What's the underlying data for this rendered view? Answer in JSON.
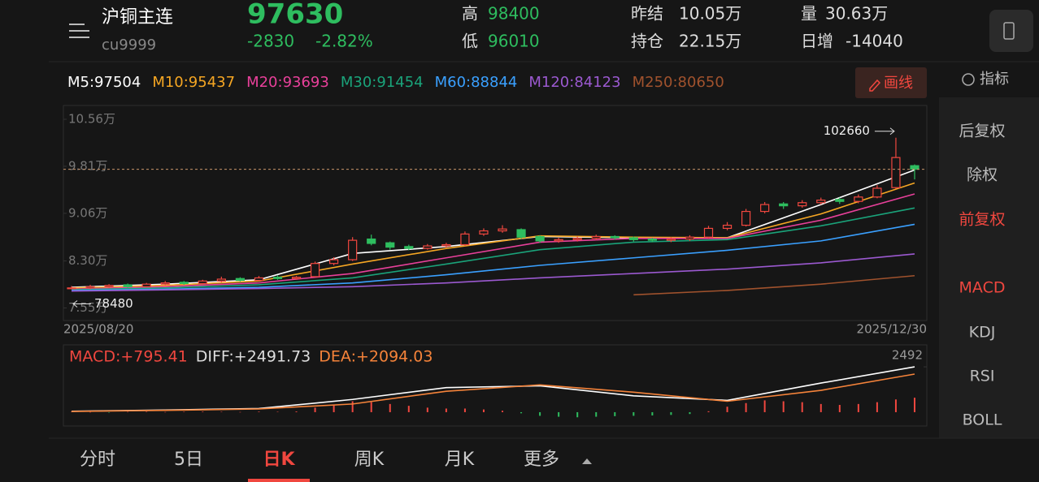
{
  "header": {
    "title": "沪铜主连",
    "code": "cu9999",
    "price": "97630",
    "change": "-2830",
    "change_pct": "-2.82%",
    "high_label": "高",
    "high": "98400",
    "low_label": "低",
    "low": "96010",
    "settle_label": "昨结",
    "settle": "10.05万",
    "oi_label": "持仓",
    "oi": "22.15万",
    "volume_label": "量",
    "volume": "30.63万",
    "oi_change_label": "日增",
    "oi_change": "-14040"
  },
  "draw_button": "画线",
  "sidebar": {
    "indicator": "指标",
    "items": [
      "后复权",
      "除权",
      "前复权",
      "MACD",
      "KDJ",
      "RSI",
      "BOLL"
    ],
    "active": [
      "前复权",
      "MACD"
    ]
  },
  "tabs": {
    "items": [
      "分时",
      "5日",
      "日K",
      "周K",
      "月K",
      "更多"
    ],
    "active": "日K"
  },
  "chart_data": [
    {
      "type": "candlestick",
      "categories": [
        "2025/08/20",
        null,
        null,
        null,
        null,
        null,
        null,
        null,
        null,
        null,
        null,
        null,
        null,
        null,
        null,
        null,
        null,
        null,
        null,
        null,
        null,
        null,
        null,
        null,
        null,
        null,
        null,
        null,
        null,
        null,
        null,
        null,
        null,
        null,
        null,
        null,
        null,
        null,
        null,
        null,
        null,
        null,
        null,
        null,
        null,
        "2025/12/30"
      ],
      "open": [
        78600,
        78700,
        78900,
        79200,
        78900,
        79300,
        79600,
        79400,
        79800,
        80200,
        79900,
        80400,
        80200,
        80500,
        82600,
        83200,
        86500,
        85900,
        85300,
        85000,
        85400,
        85600,
        87300,
        87800,
        88000,
        86900,
        86200,
        86400,
        86600,
        86900,
        86700,
        86500,
        86300,
        86500,
        86800,
        88200,
        88700,
        90900,
        92100,
        91800,
        92300,
        92800,
        92500,
        93200,
        94700,
        98200
      ],
      "close": [
        78700,
        78900,
        79100,
        78900,
        79300,
        79500,
        79400,
        79800,
        80100,
        79900,
        80300,
        80200,
        80400,
        82600,
        83200,
        86300,
        85800,
        85200,
        85000,
        85400,
        85600,
        87300,
        87800,
        88100,
        86800,
        86200,
        86400,
        86600,
        86900,
        86700,
        86400,
        86300,
        86500,
        86800,
        88200,
        88700,
        90900,
        92000,
        91800,
        92300,
        92700,
        92500,
        93200,
        94600,
        99500,
        97630
      ],
      "high": [
        79000,
        79200,
        79300,
        79400,
        79500,
        79800,
        79800,
        80000,
        80500,
        80400,
        80600,
        80700,
        80600,
        82900,
        83600,
        86800,
        87200,
        86100,
        85600,
        85700,
        85900,
        87700,
        88200,
        88700,
        88200,
        87100,
        86700,
        86900,
        87200,
        87100,
        86900,
        86700,
        86800,
        87100,
        88600,
        89200,
        91300,
        92400,
        92400,
        92700,
        93100,
        93100,
        93600,
        95100,
        102660,
        98400
      ],
      "low": [
        78480,
        78500,
        78700,
        78700,
        78800,
        79100,
        79200,
        79300,
        79600,
        79700,
        79800,
        80000,
        80000,
        80400,
        82300,
        83000,
        85500,
        84800,
        84700,
        84800,
        85100,
        85400,
        87000,
        87500,
        86500,
        85900,
        85900,
        86100,
        86300,
        86400,
        86100,
        86000,
        86000,
        86200,
        86600,
        87900,
        88500,
        90600,
        91300,
        91500,
        92000,
        92100,
        92200,
        93000,
        94500,
        96010
      ],
      "up_color": "#f0473f",
      "down_color": "#2ebd5f",
      "ylim": [
        73500,
        107800
      ],
      "yticks": [
        {
          "value": 105600,
          "label": "10.56万"
        },
        {
          "value": 98100,
          "label": "9.81万"
        },
        {
          "value": 90600,
          "label": "9.06万"
        },
        {
          "value": 83000,
          "label": "8.30万"
        },
        {
          "value": 75500,
          "label": "7.55万"
        }
      ],
      "x": [
        0,
        5,
        10,
        15,
        20,
        25,
        30,
        35,
        40,
        45
      ],
      "series": [
        {
          "name": "M5:97504",
          "color": "#ffffff",
          "values": [
            78800,
            79300,
            80000,
            84200,
            85300,
            86900,
            86700,
            86700,
            92000,
            97504
          ]
        },
        {
          "name": "M10:95437",
          "color": "#f5a623",
          "values": [
            78700,
            79100,
            79800,
            82500,
            85000,
            87000,
            86800,
            86700,
            90500,
            95437
          ]
        },
        {
          "name": "M20:93693",
          "color": "#e8409a",
          "values": [
            78500,
            78900,
            79500,
            81000,
            83500,
            86000,
            86600,
            86600,
            89500,
            93693
          ]
        },
        {
          "name": "M30:91454",
          "color": "#1aa37a",
          "values": [
            78400,
            78700,
            79200,
            80300,
            82500,
            84800,
            86000,
            86400,
            88600,
            91454
          ]
        },
        {
          "name": "M60:88844",
          "color": "#3aa0ff",
          "values": [
            78300,
            78500,
            78800,
            79500,
            80800,
            82300,
            83500,
            84700,
            86200,
            88844
          ]
        },
        {
          "name": "M120:84123",
          "color": "#9b59d0",
          "values": [
            78200,
            78400,
            78600,
            78900,
            79500,
            80300,
            81000,
            81700,
            82700,
            84123
          ]
        },
        {
          "name": "M250:80650",
          "color": "#a0522d",
          "values": [
            null,
            null,
            null,
            null,
            null,
            null,
            77600,
            78300,
            79300,
            80650
          ]
        }
      ]
    },
    {
      "type": "macd",
      "histogram": {
        "name": "MACD:+795.41",
        "color": "#f0473f",
        "down_color": "#2ebd5f",
        "values": [
          20,
          10,
          -10,
          15,
          25,
          10,
          20,
          30,
          20,
          10,
          30,
          20,
          40,
          250,
          400,
          600,
          550,
          450,
          350,
          250,
          200,
          200,
          150,
          80,
          -60,
          -200,
          -250,
          -280,
          -250,
          -220,
          -200,
          -180,
          -150,
          -100,
          50,
          300,
          500,
          650,
          600,
          550,
          450,
          400,
          450,
          550,
          700,
          795.41
        ]
      },
      "ylim": [
        -760,
        3700
      ],
      "yticks": [
        2492
      ],
      "x": [
        0,
        5,
        10,
        15,
        20,
        25,
        30,
        35,
        40,
        45
      ],
      "series": [
        {
          "name": "DIFF:+2491.73",
          "color": "#ffffff",
          "values": [
            50,
            120,
            200,
            700,
            1350,
            1450,
            900,
            650,
            1600,
            2491.73
          ]
        },
        {
          "name": "DEA:+2094.03",
          "color": "#f5833a",
          "values": [
            40,
            100,
            180,
            450,
            1150,
            1500,
            1100,
            600,
            1200,
            2094.03
          ]
        }
      ]
    }
  ]
}
